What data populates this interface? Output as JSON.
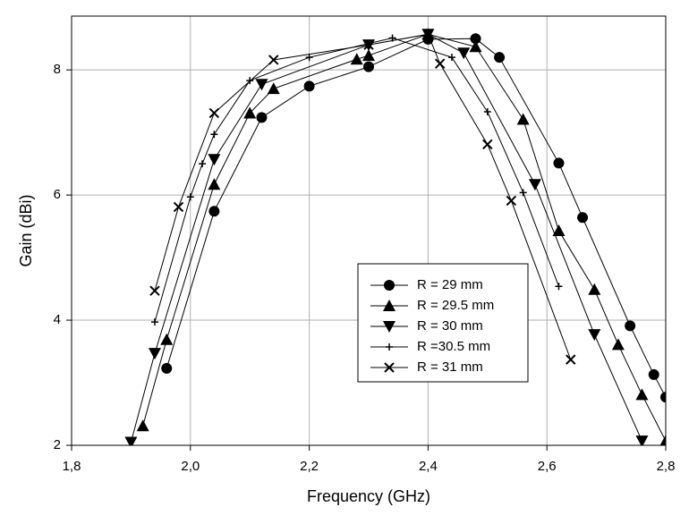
{
  "chart_data": {
    "type": "line",
    "xlabel": "Frequency (GHz)",
    "ylabel": "Gain (dBi)",
    "xlim": [
      1.8,
      2.8
    ],
    "ylim": [
      2,
      8.86
    ],
    "xticks": [
      {
        "value": 1.8,
        "label": "1,8"
      },
      {
        "value": 2.0,
        "label": "2,0"
      },
      {
        "value": 2.2,
        "label": "2,2"
      },
      {
        "value": 2.4,
        "label": "2,4"
      },
      {
        "value": 2.6,
        "label": "2,6"
      },
      {
        "value": 2.8,
        "label": "2,8"
      }
    ],
    "yticks": [
      2,
      4,
      6,
      8
    ],
    "grid": true,
    "series": [
      {
        "name": "R = 29 mm",
        "color": "#000000",
        "marker": "circle",
        "x": [
          1.96,
          2.04,
          2.12,
          2.2,
          2.3,
          2.4,
          2.48,
          2.52,
          2.62,
          2.66,
          2.74,
          2.78,
          2.8
        ],
        "values": [
          3.23,
          5.74,
          7.24,
          7.74,
          8.05,
          8.49,
          8.5,
          8.2,
          6.51,
          5.64,
          3.91,
          3.13,
          2.77
        ]
      },
      {
        "name": "R = 29.5 mm",
        "color": "#000000",
        "marker": "triangle-up",
        "x": [
          1.92,
          1.96,
          2.04,
          2.1,
          2.14,
          2.28,
          2.3,
          2.4,
          2.48,
          2.56,
          2.62,
          2.68,
          2.72,
          2.76,
          2.8
        ],
        "values": [
          2.31,
          3.69,
          6.17,
          7.31,
          7.7,
          8.17,
          8.23,
          8.57,
          8.37,
          7.21,
          5.43,
          4.49,
          3.61,
          2.81,
          2.07
        ]
      },
      {
        "name": "R = 30 mm",
        "color": "#000000",
        "marker": "triangle-down",
        "x": [
          1.9,
          1.94,
          2.04,
          2.12,
          2.3,
          2.4,
          2.46,
          2.58,
          2.68,
          2.76
        ],
        "values": [
          2.05,
          3.47,
          6.57,
          7.77,
          8.4,
          8.57,
          8.27,
          6.17,
          3.77,
          2.07
        ]
      },
      {
        "name": "R =30.5 mm",
        "color": "#000000",
        "marker": "plus",
        "x": [
          1.94,
          2.0,
          2.02,
          2.04,
          2.1,
          2.2,
          2.34,
          2.44,
          2.5,
          2.56,
          2.62
        ],
        "values": [
          3.97,
          5.97,
          6.5,
          6.97,
          7.83,
          8.2,
          8.51,
          8.2,
          7.33,
          6.04,
          4.54
        ]
      },
      {
        "name": "R = 31 mm",
        "color": "#000000",
        "marker": "x",
        "x": [
          1.94,
          1.98,
          2.04,
          2.14,
          2.3,
          2.4,
          2.42,
          2.5,
          2.54,
          2.64
        ],
        "values": [
          4.47,
          5.81,
          7.31,
          8.16,
          8.4,
          8.57,
          8.1,
          6.81,
          5.91,
          3.37
        ]
      }
    ]
  }
}
